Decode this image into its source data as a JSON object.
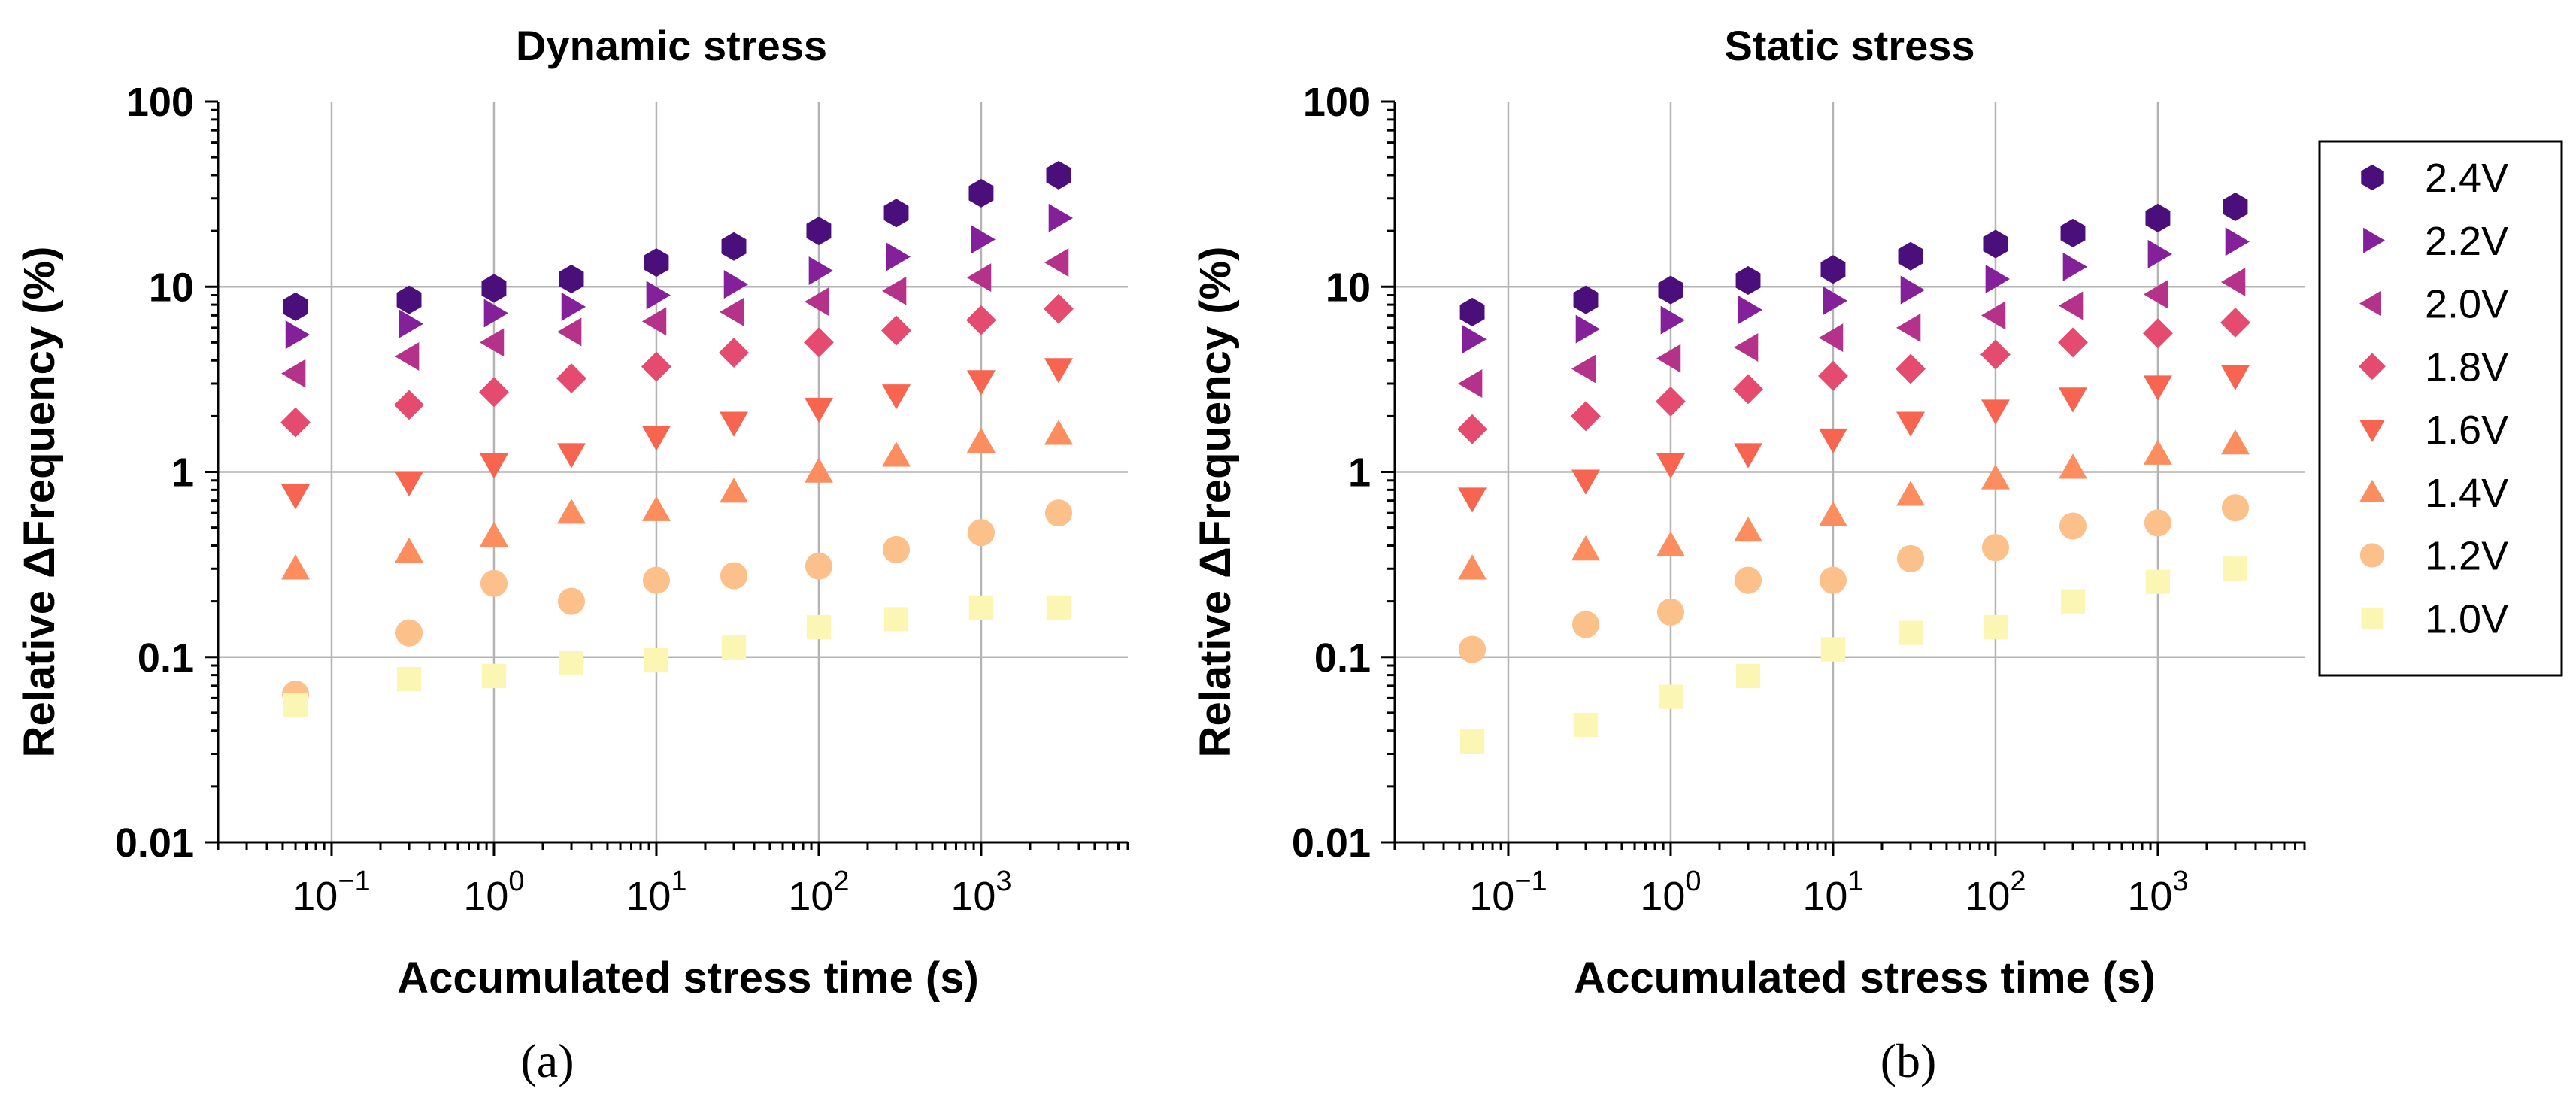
{
  "chart_data": [
    {
      "type": "scatter",
      "title": "Dynamic stress",
      "panel_label": "(a)",
      "xlabel": "Accumulated stress time (s)",
      "ylabel": "Relative ΔFrequency (%)",
      "xscale": "log",
      "yscale": "log",
      "xlim": [
        0.02,
        8000
      ],
      "ylim": [
        0.01,
        100
      ],
      "grid": true,
      "x_ticks": [
        {
          "value": 0.1,
          "base": "10",
          "exp": "−1"
        },
        {
          "value": 1,
          "base": "10",
          "exp": "0"
        },
        {
          "value": 10,
          "base": "10",
          "exp": "1"
        },
        {
          "value": 100,
          "base": "10",
          "exp": "2"
        },
        {
          "value": 1000,
          "base": "10",
          "exp": "3"
        }
      ],
      "y_ticks": [
        {
          "value": 0.01,
          "label": "0.01"
        },
        {
          "value": 0.1,
          "label": "0.1"
        },
        {
          "value": 1,
          "label": "1"
        },
        {
          "value": 10,
          "label": "10"
        },
        {
          "value": 100,
          "label": "100"
        }
      ],
      "x": [
        0.06,
        0.3,
        1,
        3,
        10,
        30,
        100,
        300,
        1000,
        3000
      ],
      "series": [
        {
          "name": "2.4V",
          "marker": "hexagon",
          "color": "#4a0f7a",
          "values": [
            7.8,
            8.5,
            9.8,
            11,
            13.5,
            16.5,
            20,
            25,
            32,
            40
          ]
        },
        {
          "name": "2.2V",
          "marker": "triangle-right",
          "color": "#84209a",
          "values": [
            5.5,
            6.3,
            7.2,
            7.8,
            9,
            10.3,
            12.2,
            14.5,
            18,
            23.5
          ]
        },
        {
          "name": "2.0V",
          "marker": "triangle-left",
          "color": "#b5328a",
          "values": [
            3.4,
            4.2,
            5,
            5.7,
            6.5,
            7.3,
            8.3,
            9.5,
            11.2,
            13.5
          ]
        },
        {
          "name": "1.8V",
          "marker": "diamond",
          "color": "#e54b6f",
          "values": [
            1.85,
            2.3,
            2.7,
            3.2,
            3.7,
            4.4,
            5,
            5.8,
            6.6,
            7.6
          ]
        },
        {
          "name": "1.6V",
          "marker": "triangle-down",
          "color": "#f7644f",
          "values": [
            0.75,
            0.88,
            1.1,
            1.25,
            1.55,
            1.85,
            2.2,
            2.6,
            3.1,
            3.6
          ]
        },
        {
          "name": "1.4V",
          "marker": "triangle-up",
          "color": "#fb8d5e",
          "values": [
            0.3,
            0.37,
            0.45,
            0.6,
            0.62,
            0.78,
            1.0,
            1.22,
            1.45,
            1.6
          ]
        },
        {
          "name": "1.2V",
          "marker": "circle",
          "color": "#fcc08b",
          "values": [
            0.063,
            0.135,
            0.25,
            0.2,
            0.26,
            0.275,
            0.31,
            0.38,
            0.47,
            0.6
          ]
        },
        {
          "name": "1.0V",
          "marker": "square",
          "color": "#fcf6b4",
          "values": [
            0.055,
            0.076,
            0.079,
            0.093,
            0.096,
            0.113,
            0.145,
            0.16,
            0.185,
            0.185
          ]
        }
      ]
    },
    {
      "type": "scatter",
      "title": "Static stress",
      "panel_label": "(b)",
      "xlabel": "Accumulated stress time (s)",
      "ylabel": "Relative ΔFrequency (%)",
      "xscale": "log",
      "yscale": "log",
      "xlim": [
        0.02,
        8000
      ],
      "ylim": [
        0.01,
        100
      ],
      "grid": true,
      "legend": "right",
      "x_ticks": [
        {
          "value": 0.1,
          "base": "10",
          "exp": "−1"
        },
        {
          "value": 1,
          "base": "10",
          "exp": "0"
        },
        {
          "value": 10,
          "base": "10",
          "exp": "1"
        },
        {
          "value": 100,
          "base": "10",
          "exp": "2"
        },
        {
          "value": 1000,
          "base": "10",
          "exp": "3"
        }
      ],
      "y_ticks": [
        {
          "value": 0.01,
          "label": "0.01"
        },
        {
          "value": 0.1,
          "label": "0.1"
        },
        {
          "value": 1,
          "label": "1"
        },
        {
          "value": 10,
          "label": "10"
        },
        {
          "value": 100,
          "label": "100"
        }
      ],
      "x": [
        0.06,
        0.3,
        1,
        3,
        10,
        30,
        100,
        300,
        1000,
        3000
      ],
      "series": [
        {
          "name": "2.4V",
          "marker": "hexagon",
          "color": "#4a0f7a",
          "values": [
            7.3,
            8.5,
            9.6,
            10.8,
            12.4,
            14.6,
            17,
            19.5,
            23.5,
            27
          ]
        },
        {
          "name": "2.2V",
          "marker": "triangle-right",
          "color": "#84209a",
          "values": [
            5.2,
            5.9,
            6.6,
            7.5,
            8.4,
            9.6,
            11,
            12.8,
            15,
            17.5
          ]
        },
        {
          "name": "2.0V",
          "marker": "triangle-left",
          "color": "#b5328a",
          "values": [
            3.0,
            3.6,
            4.1,
            4.7,
            5.3,
            6.0,
            7.0,
            7.9,
            9.1,
            10.6
          ]
        },
        {
          "name": "1.8V",
          "marker": "diamond",
          "color": "#e54b6f",
          "values": [
            1.7,
            2.0,
            2.4,
            2.8,
            3.3,
            3.6,
            4.3,
            5.0,
            5.6,
            6.4
          ]
        },
        {
          "name": "1.6V",
          "marker": "triangle-down",
          "color": "#f7644f",
          "values": [
            0.72,
            0.9,
            1.1,
            1.25,
            1.5,
            1.85,
            2.15,
            2.5,
            2.9,
            3.3
          ]
        },
        {
          "name": "1.4V",
          "marker": "triangle-up",
          "color": "#fb8d5e",
          "values": [
            0.3,
            0.38,
            0.4,
            0.48,
            0.58,
            0.75,
            0.92,
            1.05,
            1.25,
            1.42
          ]
        },
        {
          "name": "1.2V",
          "marker": "circle",
          "color": "#fcc08b",
          "values": [
            0.11,
            0.15,
            0.175,
            0.26,
            0.26,
            0.34,
            0.39,
            0.51,
            0.53,
            0.64
          ]
        },
        {
          "name": "1.0V",
          "marker": "square",
          "color": "#fcf6b4",
          "values": [
            0.035,
            0.043,
            0.061,
            0.079,
            0.11,
            0.135,
            0.145,
            0.2,
            0.255,
            0.3
          ]
        }
      ]
    }
  ]
}
